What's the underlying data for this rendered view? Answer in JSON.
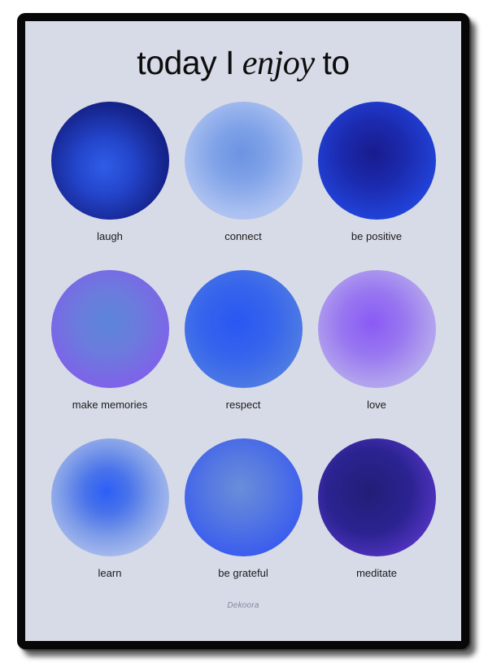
{
  "poster": {
    "background_color": "#d7dbe7",
    "frame_color": "#070707",
    "title": {
      "part1": "today I",
      "emphasis": "enjoy",
      "part2": "to"
    },
    "brand": "Dekoora",
    "circles": [
      {
        "label": "laugh",
        "gradient": {
          "at": "45% 55%",
          "stops": [
            "#2f5de6 0%",
            "#2446cd 30%",
            "#16258f 65%",
            "#0e1478 88%",
            "#0d1070 100%"
          ]
        }
      },
      {
        "label": "connect",
        "gradient": {
          "at": "48% 44%",
          "stops": [
            "#6d93e2 0%",
            "#7fa2e8 30%",
            "#a9bff0 65%",
            "#c5d3f6 100%"
          ]
        }
      },
      {
        "label": "be positive",
        "gradient": {
          "at": "47% 44%",
          "stops": [
            "#191b8d 0%",
            "#1b2aae 35%",
            "#2141d6 70%",
            "#2455f6 100%"
          ]
        }
      },
      {
        "label": "make memories",
        "gradient": {
          "at": "48% 44%",
          "stops": [
            "#5c85d8 0%",
            "#6b7bdd 35%",
            "#7d64e8 70%",
            "#8b55f2 100%"
          ]
        }
      },
      {
        "label": "respect",
        "gradient": {
          "at": "44% 44%",
          "stops": [
            "#2957f2 0%",
            "#3765ec 40%",
            "#4f7ce2 75%",
            "#6189dd 100%"
          ]
        }
      },
      {
        "label": "love",
        "gradient": {
          "at": "46% 45%",
          "stops": [
            "#8a5af6 0%",
            "#9877f0 35%",
            "#b09fee 65%",
            "#bfc2f2 100%"
          ]
        }
      },
      {
        "label": "learn",
        "gradient": {
          "at": "47% 45%",
          "stops": [
            "#2c5ef6 0%",
            "#4a74ea 25%",
            "#7e9ce8 50%",
            "#aabced 75%",
            "#c6d0f2 100%"
          ]
        }
      },
      {
        "label": "be grateful",
        "gradient": {
          "at": "47% 42%",
          "stops": [
            "#6a8ed9 0%",
            "#5578e2 35%",
            "#3a5cee 75%",
            "#2c4ef2 100%"
          ]
        }
      },
      {
        "label": "meditate",
        "gradient": {
          "at": "43% 45%",
          "stops": [
            "#211e77 0%",
            "#2b2391 45%",
            "#5434c4 78%",
            "#7a49e9 100%"
          ]
        }
      }
    ]
  }
}
